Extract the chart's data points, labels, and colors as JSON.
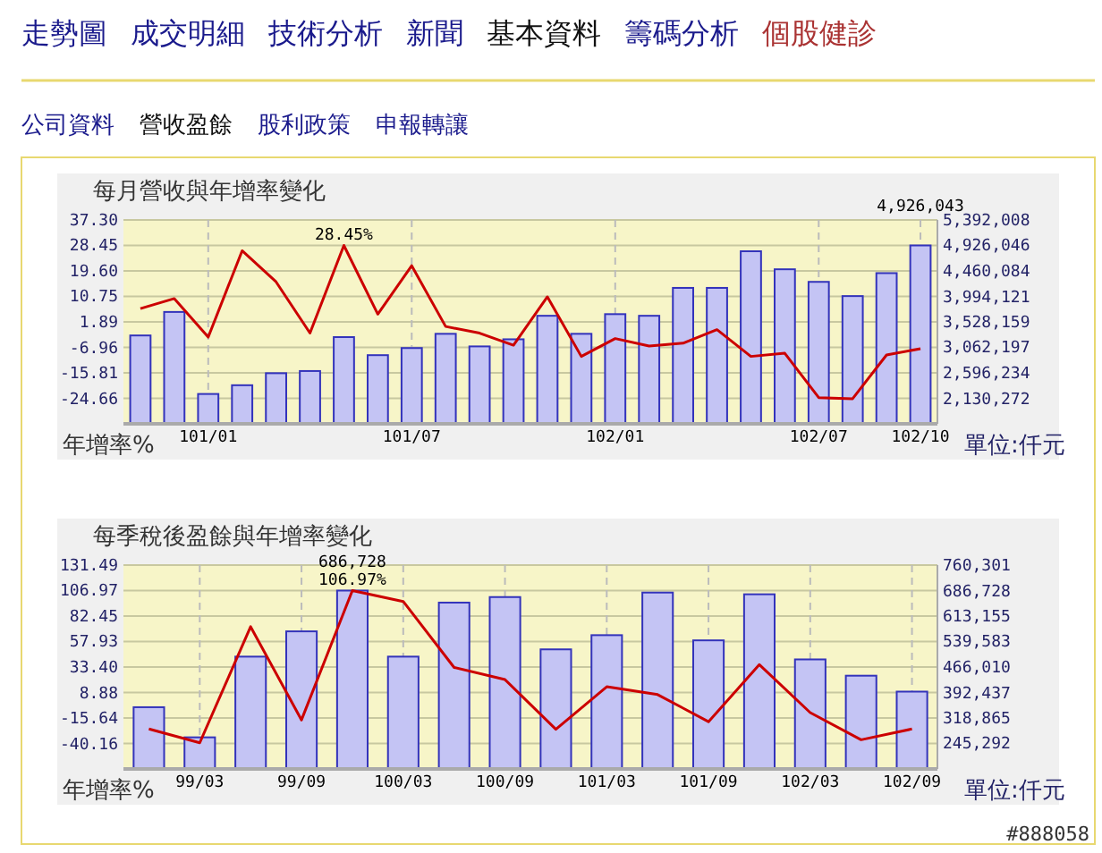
{
  "chart_data": [
    {
      "type": "other",
      "annotations": [
        "走勢圖",
        "成交明細",
        "技術分析",
        "新聞",
        "基本資料",
        "籌碼分析",
        "個股健診"
      ],
      "colors": [
        "#1a1a8c",
        "#1a1a8c",
        "#1a1a8c",
        "#1a1a8c",
        "#111111",
        "#1a1a8c",
        "#aa3333"
      ]
    },
    {
      "type": "other",
      "annotations": [
        "公司資料",
        "營收盈餘",
        "股利政策",
        "申報轉讓"
      ],
      "colors": [
        "#1a1a8c",
        "#111111",
        "#1a1a8c",
        "#1a1a8c"
      ]
    },
    {
      "type": "bar",
      "title": "每月營收與年增率變化",
      "ylabel": "年增率%",
      "y2label": "單位:仟元",
      "grid": true,
      "categories": [
        null,
        null,
        "101/01",
        null,
        null,
        null,
        null,
        null,
        "101/07",
        null,
        null,
        null,
        null,
        null,
        "102/01",
        null,
        null,
        null,
        null,
        null,
        "102/07",
        null,
        null,
        "102/10"
      ],
      "series": [
        {
          "type": "bar",
          "axis": "y2",
          "color": "#c4c4f4",
          "values": [
            3280000,
            3710000,
            2210000,
            2370000,
            2590000,
            2630000,
            3250000,
            2920000,
            3050000,
            3310000,
            3080000,
            3210000,
            3640000,
            3310000,
            3670000,
            3640000,
            4150000,
            4150000,
            4820000,
            4490000,
            4260000,
            4000000,
            4420000,
            4926043
          ],
          "value_labels": [
            null,
            null,
            null,
            null,
            null,
            null,
            null,
            null,
            null,
            null,
            null,
            null,
            null,
            null,
            null,
            null,
            null,
            null,
            null,
            null,
            null,
            null,
            null,
            "4,926,043"
          ]
        },
        {
          "type": "line",
          "axis": "y",
          "color": "#cc0000",
          "values": [
            6.5,
            10.0,
            -3.4,
            26.6,
            15.8,
            -2.0,
            28.45,
            4.6,
            21.4,
            0.3,
            -2.0,
            -6.2,
            10.6,
            -10.1,
            -3.9,
            -6.5,
            -5.5,
            -0.8,
            -10.1,
            -9.0,
            -24.4,
            -24.8,
            -9.6,
            -7.4
          ],
          "value_labels": [
            null,
            null,
            null,
            null,
            null,
            null,
            "28.45%",
            null,
            null,
            null,
            null,
            null,
            null,
            null,
            null,
            null,
            null,
            null,
            null,
            null,
            null,
            null,
            null,
            null
          ]
        }
      ],
      "ylim": [
        -33.51,
        37.3
      ],
      "yticks": [
        {
          "value": 37.3,
          "label": "37.30"
        },
        28.45,
        {
          "value": 19.6,
          "label": "19.60"
        },
        10.75,
        1.89,
        -6.96,
        -15.81,
        -24.66
      ],
      "y2lim": [
        1664310,
        5392008
      ],
      "y2ticks": [
        {
          "value": 5392008,
          "label": "5,392,008"
        },
        {
          "value": 4926046,
          "label": "4,926,046"
        },
        {
          "value": 4460084,
          "label": "4,460,084"
        },
        {
          "value": 3994121,
          "label": "3,994,121"
        },
        {
          "value": 3528159,
          "label": "3,528,159"
        },
        {
          "value": 3062197,
          "label": "3,062,197"
        },
        {
          "value": 2596234,
          "label": "2,596,234"
        },
        {
          "value": 2130272,
          "label": "2,130,272"
        }
      ]
    },
    {
      "type": "bar",
      "title": "每季稅後盈餘與年增率變化",
      "ylabel": "年增率%",
      "y2label": "單位:仟元",
      "grid": true,
      "annotations": [
        "#888058"
      ],
      "categories": [
        null,
        "99/03",
        null,
        "99/09",
        null,
        "100/03",
        null,
        "100/09",
        null,
        "101/03",
        null,
        "101/09",
        null,
        "102/03",
        null,
        "102/09"
      ],
      "series": [
        {
          "type": "bar",
          "axis": "y2",
          "color": "#c4c4f4",
          "values": [
            350000,
            263000,
            496000,
            569000,
            686728,
            496000,
            652000,
            668000,
            517000,
            558000,
            681000,
            543000,
            676000,
            488000,
            441000,
            395000
          ],
          "value_labels": [
            null,
            null,
            null,
            null,
            "686,728",
            null,
            null,
            null,
            null,
            null,
            null,
            null,
            null,
            null,
            null,
            null
          ]
        },
        {
          "type": "line",
          "axis": "y",
          "color": "#cc0000",
          "values": [
            -26.2,
            -39.5,
            72.2,
            -17.5,
            106.97,
            96.5,
            33.0,
            21.3,
            -26.5,
            14.4,
            6.9,
            -19.2,
            35.7,
            -10.5,
            -36.6,
            -26.2
          ],
          "value_labels": [
            null,
            null,
            null,
            null,
            "106.97%",
            null,
            null,
            null,
            null,
            null,
            null,
            null,
            null,
            null,
            null,
            null
          ]
        }
      ],
      "ylim": [
        -64.68,
        131.49
      ],
      "yticks": [
        131.49,
        106.97,
        82.45,
        57.93,
        {
          "value": 33.4,
          "label": "33.40"
        },
        8.88,
        -15.64,
        -40.16
      ],
      "y2lim": [
        171719,
        760301
      ],
      "y2ticks": [
        {
          "value": 760301,
          "label": "760,301"
        },
        {
          "value": 686728,
          "label": "686,728"
        },
        {
          "value": 613155,
          "label": "613,155"
        },
        {
          "value": 539583,
          "label": "539,583"
        },
        {
          "value": 466010,
          "label": "466,010"
        },
        {
          "value": 392437,
          "label": "392,437"
        },
        {
          "value": 318865,
          "label": "318,865"
        },
        {
          "value": 245292,
          "label": "245,292"
        }
      ]
    }
  ]
}
